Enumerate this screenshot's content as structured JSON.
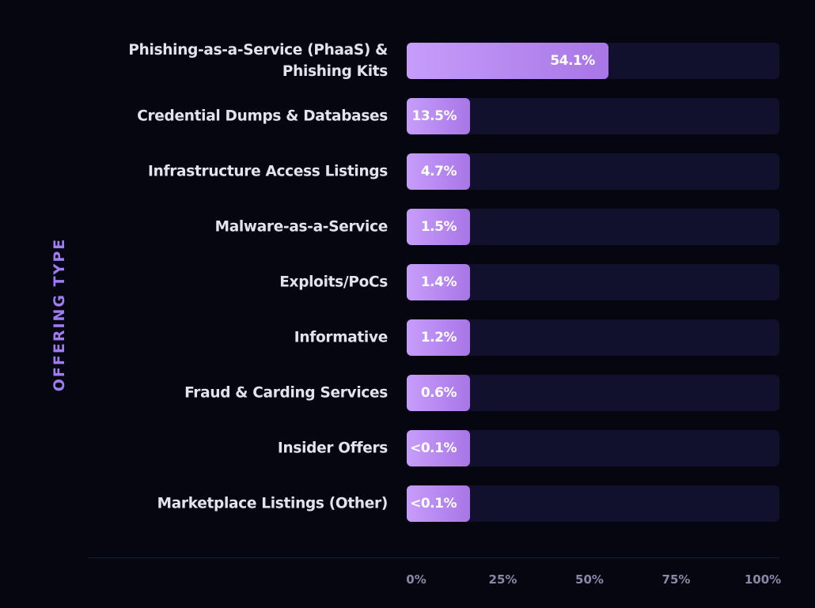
{
  "chart_data": {
    "type": "bar",
    "orientation": "horizontal",
    "ylabel": "OFFERING TYPE",
    "xlabel": "",
    "xlim": [
      0,
      100
    ],
    "x_ticks": [
      "0%",
      "25%",
      "50%",
      "75%",
      "100%"
    ],
    "categories": [
      "Phishing-as-a-Service (PhaaS) & Phishing Kits",
      "Credential Dumps & Databases",
      "Infrastructure Access Listings",
      "Malware-as-a-Service",
      "Exploits/PoCs",
      "Informative",
      "Fraud & Carding Services",
      "Insider Offers",
      "Marketplace Listings (Other)"
    ],
    "values": [
      54.1,
      13.5,
      4.7,
      1.5,
      1.4,
      1.2,
      0.6,
      0.1,
      0.1
    ],
    "value_labels": [
      "54.1%",
      "13.5%",
      "4.7%",
      "1.5%",
      "1.4%",
      "1.2%",
      "0.6%",
      "<0.1%",
      "<0.1%"
    ],
    "grid": false,
    "legend": "none",
    "colors": {
      "bar_start": "#c69dfa",
      "bar_end": "#a876e6",
      "track": "#11112e",
      "axis_title": "#a07cf2"
    }
  }
}
